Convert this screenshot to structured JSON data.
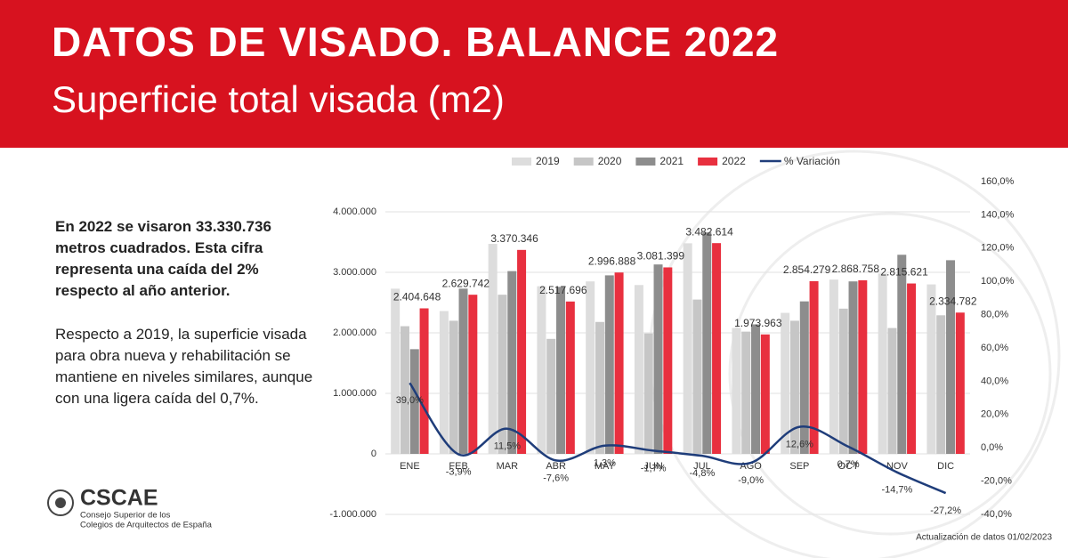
{
  "header": {
    "title": "DATOS DE VISADO. BALANCE 2022",
    "subtitle": "Superficie total visada (m2)"
  },
  "body": {
    "paragraphs": [
      "En 2022 se visaron 33.330.736 metros cuadrados. Esta cifra representa una caída del 2% respecto al año anterior.",
      "Respecto a 2019, la superficie visada para obra nueva y rehabilitación se mantiene en niveles similares, aunque con una ligera caída del 0,7%."
    ]
  },
  "logo": {
    "name": "CSCAE",
    "lines": [
      "Consejo Superior de los",
      "Colegios de Arquitectos de España"
    ]
  },
  "footer": "Actualización de datos 01/02/2023",
  "chart_data": {
    "type": "bar",
    "categories": [
      "ENE",
      "FEB",
      "MAR",
      "ABR",
      "MAY",
      "JUN",
      "JUL",
      "AGO",
      "SEP",
      "OCT",
      "NOV",
      "DIC"
    ],
    "series": [
      {
        "name": "2019",
        "color": "#dddddd",
        "values": [
          2730000,
          2360000,
          3470000,
          2770000,
          2850000,
          2790000,
          3480000,
          2080000,
          2330000,
          2880000,
          2980000,
          2800000
        ]
      },
      {
        "name": "2020",
        "color": "#c6c6c6",
        "values": [
          2110000,
          2200000,
          2630000,
          1900000,
          2180000,
          1990000,
          2550000,
          2020000,
          2200000,
          2400000,
          2080000,
          2290000
        ]
      },
      {
        "name": "2021",
        "color": "#8d8d8d",
        "values": [
          1730000,
          2730000,
          3020000,
          2760000,
          2950000,
          3130000,
          3660000,
          2140000,
          2520000,
          2850000,
          3290000,
          3200000
        ]
      },
      {
        "name": "2022",
        "color": "#e8303f",
        "values": [
          2404648,
          2629742,
          3370346,
          2517696,
          2996888,
          3081399,
          3482614,
          1973963,
          2854279,
          2868758,
          2815621,
          2334782
        ],
        "value_labels": [
          "2.404.648",
          "2.629.742",
          "3.370.346",
          "2.517.696",
          "2.996.888",
          "3.081.399",
          "3.482.614",
          "1.973.963",
          "2.854.279",
          "2.868.758",
          "2.815.621",
          "2.334.782"
        ]
      },
      {
        "name": "% Variación",
        "type": "line",
        "axis": "y2",
        "color": "#1f3d7a",
        "values": [
          39.0,
          -3.9,
          11.5,
          -7.6,
          1.3,
          -1.7,
          -4.8,
          -9.0,
          12.6,
          0.7,
          -14.7,
          -27.2
        ],
        "value_labels": [
          "39,0%",
          "-3,9%",
          "11,5%",
          "-7,6%",
          "1,3%",
          "-1,7%",
          "-4,8%",
          "-9,0%",
          "12,6%",
          "0,7%",
          "-14,7%",
          "-27,2%"
        ]
      }
    ],
    "ylim": [
      -1000000,
      4500000
    ],
    "yticks": [
      {
        "value": -1000000,
        "label": "-1.000.000"
      },
      0,
      {
        "value": 1000000,
        "label": "1.000.000"
      },
      {
        "value": 2000000,
        "label": "2.000.000"
      },
      {
        "value": 3000000,
        "label": "3.000.000"
      },
      {
        "value": 4000000,
        "label": "4.000.000"
      }
    ],
    "y2lim": [
      -40,
      160
    ],
    "y2ticks": [
      {
        "value": -40,
        "label": "-40,0%"
      },
      {
        "value": -20,
        "label": "-20,0%"
      },
      {
        "value": 0,
        "label": "0,0%"
      },
      {
        "value": 20,
        "label": "20,0%"
      },
      {
        "value": 40,
        "label": "40,0%"
      },
      {
        "value": 60,
        "label": "60,0%"
      },
      {
        "value": 80,
        "label": "80,0%"
      },
      {
        "value": 100,
        "label": "100,0%"
      },
      {
        "value": 120,
        "label": "120,0%"
      },
      {
        "value": 140,
        "label": "140,0%"
      },
      {
        "value": 160,
        "label": "160,0%"
      }
    ],
    "grid": true,
    "legend": "top"
  }
}
